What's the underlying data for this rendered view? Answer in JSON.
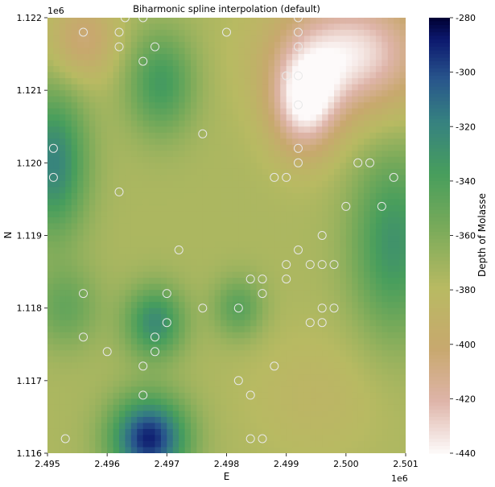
{
  "chart_data": {
    "type": "heatmap",
    "title": "Biharmonic spline interpolation (default)",
    "xlabel": "E",
    "ylabel": "N",
    "x_offset_label": "1e6",
    "y_offset_label": "1e6",
    "xlim": [
      2.495,
      2.501
    ],
    "ylim": [
      1.116,
      1.122
    ],
    "x_ticks": [
      "2.495",
      "2.496",
      "2.497",
      "2.498",
      "2.499",
      "2.500",
      "2.501"
    ],
    "y_ticks": [
      "1.116",
      "1.117",
      "1.118",
      "1.119",
      "1.120",
      "1.121",
      "1.122"
    ],
    "colorbar": {
      "label": "Depth of Molasse",
      "range": [
        -440,
        -280
      ],
      "ticks": [
        "-280",
        "-300",
        "-320",
        "-340",
        "-360",
        "-380",
        "-400",
        "-420",
        "-440"
      ],
      "colormap": "gist_earth"
    },
    "field": {
      "background": -375,
      "features": [
        {
          "x": 2.4967,
          "y": 1.1162,
          "value": -290,
          "sx": 0.00045,
          "sy": 0.0004
        },
        {
          "x": 2.4968,
          "y": 1.1178,
          "value": -325,
          "sx": 0.00035,
          "sy": 0.00035
        },
        {
          "x": 2.4951,
          "y": 1.12,
          "value": -320,
          "sx": 0.0004,
          "sy": 0.0007
        },
        {
          "x": 2.4969,
          "y": 1.1211,
          "value": -335,
          "sx": 0.0004,
          "sy": 0.0005
        },
        {
          "x": 2.5008,
          "y": 1.1189,
          "value": -330,
          "sx": 0.0005,
          "sy": 0.0009
        },
        {
          "x": 2.5001,
          "y": 1.1215,
          "value": -435,
          "sx": 0.0009,
          "sy": 0.0006
        },
        {
          "x": 2.4993,
          "y": 1.1208,
          "value": -430,
          "sx": 0.0004,
          "sy": 0.0005
        },
        {
          "x": 2.4956,
          "y": 1.1217,
          "value": -405,
          "sx": 0.0004,
          "sy": 0.0004
        },
        {
          "x": 2.4995,
          "y": 1.1168,
          "value": -385,
          "sx": 0.0008,
          "sy": 0.0006
        },
        {
          "x": 2.4982,
          "y": 1.118,
          "value": -345,
          "sx": 0.0003,
          "sy": 0.0003
        },
        {
          "x": 2.4953,
          "y": 1.118,
          "value": -350,
          "sx": 0.0004,
          "sy": 0.0004
        }
      ]
    },
    "points": [
      [
        2.4953,
        1.1162
      ],
      [
        2.4956,
        1.1176
      ],
      [
        2.4956,
        1.1182
      ],
      [
        2.496,
        1.1174
      ],
      [
        2.4963,
        1.122
      ],
      [
        2.4966,
        1.122
      ],
      [
        2.4956,
        1.1218
      ],
      [
        2.4962,
        1.1218
      ],
      [
        2.4962,
        1.1216
      ],
      [
        2.4966,
        1.1214
      ],
      [
        2.4968,
        1.1216
      ],
      [
        2.4962,
        1.1196
      ],
      [
        2.4951,
        1.1202
      ],
      [
        2.4951,
        1.1198
      ],
      [
        2.4966,
        1.1168
      ],
      [
        2.4966,
        1.1172
      ],
      [
        2.4968,
        1.1174
      ],
      [
        2.4968,
        1.1176
      ],
      [
        2.497,
        1.1178
      ],
      [
        2.497,
        1.1182
      ],
      [
        2.4972,
        1.1188
      ],
      [
        2.4976,
        1.118
      ],
      [
        2.4976,
        1.1204
      ],
      [
        2.498,
        1.1218
      ],
      [
        2.4982,
        1.117
      ],
      [
        2.4982,
        1.118
      ],
      [
        2.4984,
        1.1168
      ],
      [
        2.4984,
        1.1184
      ],
      [
        2.4984,
        1.1162
      ],
      [
        2.4986,
        1.1162
      ],
      [
        2.4986,
        1.1184
      ],
      [
        2.4986,
        1.1182
      ],
      [
        2.4988,
        1.1172
      ],
      [
        2.4988,
        1.1198
      ],
      [
        2.499,
        1.1198
      ],
      [
        2.499,
        1.1186
      ],
      [
        2.499,
        1.1184
      ],
      [
        2.499,
        1.1212
      ],
      [
        2.4992,
        1.1212
      ],
      [
        2.4992,
        1.1208
      ],
      [
        2.4992,
        1.1202
      ],
      [
        2.4992,
        1.12
      ],
      [
        2.4992,
        1.1188
      ],
      [
        2.4992,
        1.122
      ],
      [
        2.4992,
        1.1218
      ],
      [
        2.4992,
        1.1216
      ],
      [
        2.4994,
        1.1186
      ],
      [
        2.4994,
        1.1178
      ],
      [
        2.4996,
        1.119
      ],
      [
        2.4996,
        1.1186
      ],
      [
        2.4996,
        1.118
      ],
      [
        2.4996,
        1.1178
      ],
      [
        2.4998,
        1.1186
      ],
      [
        2.4998,
        1.118
      ],
      [
        2.5,
        1.1194
      ],
      [
        2.5002,
        1.12
      ],
      [
        2.5004,
        1.12
      ],
      [
        2.5006,
        1.1194
      ],
      [
        2.5008,
        1.1198
      ]
    ]
  }
}
